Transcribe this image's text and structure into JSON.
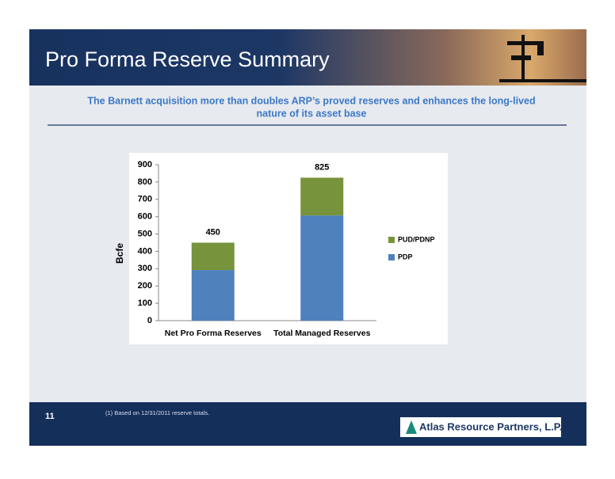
{
  "header": {
    "title": "Pro Forma Reserve Summary",
    "subtitle": [
      "The Barnett acquisition more than doubles ARP’s proved reserves and enhances the long-lived",
      "nature of its asset base"
    ]
  },
  "chart_data": {
    "type": "stacked-bar",
    "ylabel": "Bcfe",
    "categories": [
      "Net Pro Forma Reserves",
      "Total Managed Reserves"
    ],
    "series": [
      {
        "name": "PDP",
        "color": "#4f81bd",
        "values": [
          292,
          607
        ]
      },
      {
        "name": "PUD/PDNP",
        "color": "#77933c",
        "values": [
          158,
          218
        ]
      }
    ],
    "total_labels": [
      "450",
      "825"
    ],
    "ylim": [
      0,
      900
    ],
    "yticks": [
      0,
      100,
      200,
      300,
      400,
      500,
      600,
      700,
      800,
      900
    ],
    "legend": "right"
  },
  "footer": {
    "page": "11",
    "note": "(1)  Based on 12/31/2011 reserve totals.",
    "logo": "Atlas Resource Partners, L.P."
  }
}
